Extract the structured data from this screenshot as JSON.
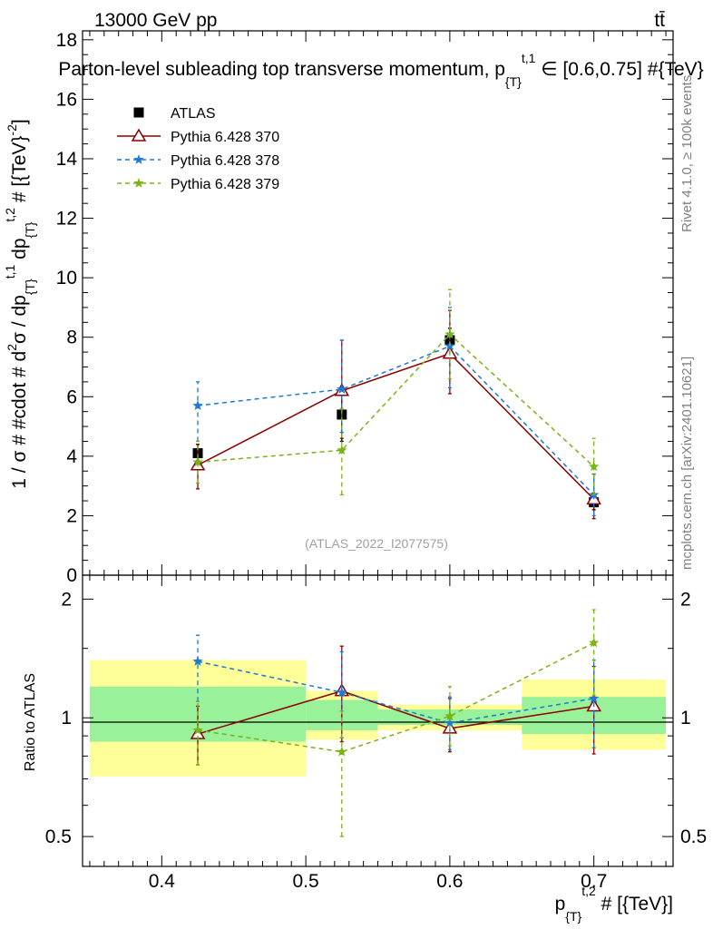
{
  "header": {
    "energy": "13000 GeV pp",
    "process": "tt̄",
    "title_main": "Parton-level subleading top transverse momentum, p",
    "title_sub": "{T}",
    "title_sup": "t,1",
    "title_tail": " ∈ [0.6,0.75] #{TeV}"
  },
  "side_labels": {
    "rivet": "Rivet 4.1.0, ≥ 100k events",
    "mcplots": "mcplots.cern.ch [arXiv:2401.10621]"
  },
  "watermark": "(ATLAS_2022_I2077575)",
  "chart_data": [
    {
      "type": "line",
      "panel": "main",
      "ylabel": "1 / σ # #cdot # d²σ / dp_{T}^{t,1} dp_{T}^{t,2} # [{TeV}^{-2}]",
      "ylabel_parts": {
        "a": "1 / σ # #cdot # d",
        "a_sup": "2",
        "b": "σ / dp",
        "b_sub": "{T}",
        "b_sup": "t,1",
        "c": " dp",
        "c_sub": "{T}",
        "c_sup": "t,2",
        "d": " # [{TeV}",
        "d_sup": "-2",
        "e": "]"
      },
      "ylim": [
        0,
        18.3
      ],
      "yticks": [
        {
          "v": 0,
          "label": "0"
        },
        {
          "v": 2,
          "label": "2"
        },
        {
          "v": 4,
          "label": "4"
        },
        {
          "v": 6,
          "label": "6"
        },
        {
          "v": 8,
          "label": "8"
        },
        {
          "v": 10,
          "label": "10"
        },
        {
          "v": 12,
          "label": "12"
        },
        {
          "v": 14,
          "label": "14"
        },
        {
          "v": 16,
          "label": "16"
        },
        {
          "v": 18,
          "label": "18"
        }
      ],
      "xlim": [
        0.345,
        0.755
      ],
      "series": [
        {
          "name": "ATLAS",
          "legend": "ATLAS",
          "marker": "square",
          "color": "#000000",
          "line": "none",
          "points": [
            {
              "x": 0.425,
              "y": 4.1,
              "lo": 3.8,
              "hi": 4.4
            },
            {
              "x": 0.525,
              "y": 5.4,
              "lo": 4.5,
              "hi": 6.3
            },
            {
              "x": 0.6,
              "y": 7.9,
              "lo": 7.5,
              "hi": 8.3
            },
            {
              "x": 0.7,
              "y": 2.45,
              "lo": 2.2,
              "hi": 2.7
            }
          ]
        },
        {
          "name": "Pythia 6.428 370",
          "legend": "Pythia 6.428 370",
          "marker": "triangle",
          "color": "#8b0000",
          "line": "solid",
          "points": [
            {
              "x": 0.425,
              "y": 3.7,
              "lo": 2.9,
              "hi": 4.4
            },
            {
              "x": 0.525,
              "y": 6.2,
              "lo": 4.6,
              "hi": 7.9
            },
            {
              "x": 0.6,
              "y": 7.45,
              "lo": 6.1,
              "hi": 8.9
            },
            {
              "x": 0.7,
              "y": 2.55,
              "lo": 1.9,
              "hi": 3.4
            }
          ]
        },
        {
          "name": "Pythia 6.428 378",
          "legend": "Pythia 6.428 378",
          "marker": "star",
          "color": "#1f78d4",
          "line": "dashed",
          "points": [
            {
              "x": 0.425,
              "y": 5.7,
              "lo": 4.5,
              "hi": 6.5
            },
            {
              "x": 0.525,
              "y": 6.25,
              "lo": 4.8,
              "hi": 7.9
            },
            {
              "x": 0.6,
              "y": 7.7,
              "lo": 6.3,
              "hi": 9.0
            },
            {
              "x": 0.7,
              "y": 2.7,
              "lo": 2.0,
              "hi": 3.4
            }
          ]
        },
        {
          "name": "Pythia 6.428 379",
          "legend": "Pythia 6.428 379",
          "marker": "star",
          "color": "#7ab317",
          "line": "dashed",
          "points": [
            {
              "x": 0.425,
              "y": 3.8,
              "lo": 3.1,
              "hi": 4.5
            },
            {
              "x": 0.525,
              "y": 4.2,
              "lo": 2.7,
              "hi": 5.6
            },
            {
              "x": 0.6,
              "y": 8.1,
              "lo": 6.6,
              "hi": 9.6
            },
            {
              "x": 0.7,
              "y": 3.65,
              "lo": 2.7,
              "hi": 4.6
            }
          ]
        }
      ]
    },
    {
      "type": "line",
      "panel": "ratio",
      "ylabel": "Ratio to ATLAS",
      "yscale": "log",
      "ylim": [
        0.42,
        2.3
      ],
      "yticks": [
        {
          "v": 0.5,
          "label": "0.5"
        },
        {
          "v": 1,
          "label": "1"
        },
        {
          "v": 2,
          "label": "2"
        }
      ],
      "xlabel_parts": {
        "a": "p",
        "a_sub": "{T}",
        "a_sup": "t,2",
        "b": " # [{TeV}]"
      },
      "xlim": [
        0.345,
        0.755
      ],
      "xticks": [
        {
          "v": 0.4,
          "label": "0.4"
        },
        {
          "v": 0.5,
          "label": "0.5"
        },
        {
          "v": 0.6,
          "label": "0.6"
        },
        {
          "v": 0.7,
          "label": "0.7"
        }
      ],
      "bands": [
        {
          "x0": 0.35,
          "x1": 0.5,
          "yellow": [
            0.71,
            1.4
          ],
          "green": [
            0.87,
            1.2
          ]
        },
        {
          "x0": 0.5,
          "x1": 0.55,
          "yellow": [
            0.88,
            1.17
          ],
          "green": [
            0.93,
            1.11
          ]
        },
        {
          "x0": 0.55,
          "x1": 0.65,
          "yellow": [
            0.93,
            1.08
          ],
          "green": [
            0.96,
            1.05
          ]
        },
        {
          "x0": 0.65,
          "x1": 0.75,
          "yellow": [
            0.83,
            1.25
          ],
          "green": [
            0.91,
            1.13
          ]
        }
      ],
      "series": [
        {
          "name": "Pythia 6.428 370",
          "marker": "triangle",
          "color": "#8b0000",
          "line": "solid",
          "points": [
            {
              "x": 0.425,
              "y": 0.91,
              "lo": 0.76,
              "hi": 1.07
            },
            {
              "x": 0.525,
              "y": 1.17,
              "lo": 0.87,
              "hi": 1.52
            },
            {
              "x": 0.6,
              "y": 0.94,
              "lo": 0.82,
              "hi": 1.12
            },
            {
              "x": 0.7,
              "y": 1.07,
              "lo": 0.81,
              "hi": 1.35
            }
          ]
        },
        {
          "name": "Pythia 6.428 378",
          "marker": "star",
          "color": "#1f78d4",
          "line": "dashed",
          "points": [
            {
              "x": 0.425,
              "y": 1.39,
              "lo": 1.1,
              "hi": 1.62
            },
            {
              "x": 0.525,
              "y": 1.16,
              "lo": 0.89,
              "hi": 1.47
            },
            {
              "x": 0.6,
              "y": 0.97,
              "lo": 0.83,
              "hi": 1.13
            },
            {
              "x": 0.7,
              "y": 1.12,
              "lo": 0.84,
              "hi": 1.4
            }
          ]
        },
        {
          "name": "Pythia 6.428 379",
          "marker": "star",
          "color": "#7ab317",
          "line": "dashed",
          "points": [
            {
              "x": 0.425,
              "y": 0.93,
              "lo": 0.76,
              "hi": 1.1
            },
            {
              "x": 0.525,
              "y": 0.82,
              "lo": 0.5,
              "hi": 1.04
            },
            {
              "x": 0.6,
              "y": 1.01,
              "lo": 0.85,
              "hi": 1.2
            },
            {
              "x": 0.7,
              "y": 1.55,
              "lo": 1.14,
              "hi": 1.88
            }
          ]
        }
      ]
    }
  ]
}
